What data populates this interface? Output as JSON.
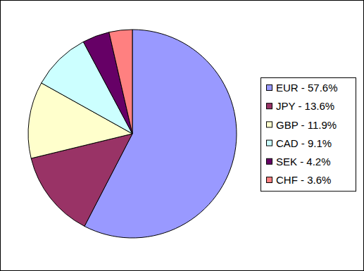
{
  "chart_data": {
    "type": "pie",
    "categories": [
      "EUR - 57.6%",
      "JPY - 13.6%",
      "GBP - 11.9%",
      "CAD - 9.1%",
      "SEK - 4.2%",
      "CHF - 3.6%"
    ],
    "values": [
      57.6,
      13.6,
      11.9,
      9.1,
      4.2,
      3.6
    ],
    "colors": [
      "#9999ff",
      "#993366",
      "#ffffcc",
      "#ccffff",
      "#660066",
      "#ff8080"
    ],
    "legend": "right"
  }
}
